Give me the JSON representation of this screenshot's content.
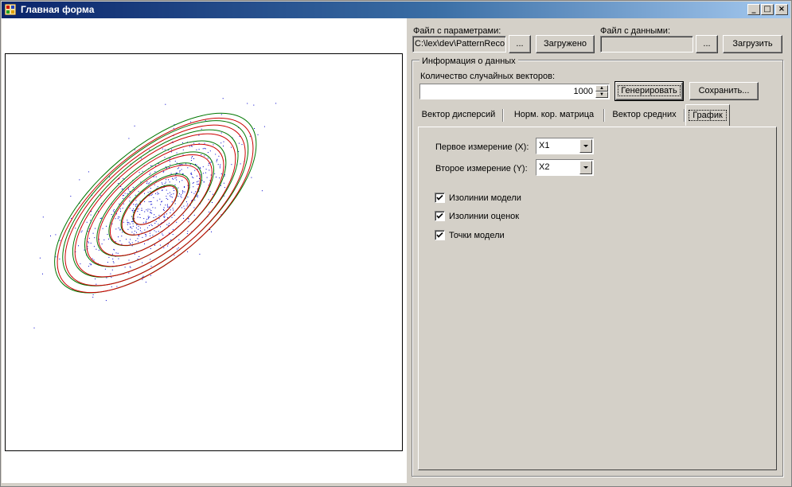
{
  "window": {
    "title": "Главная форма",
    "minimize_glyph": "_",
    "maximize_glyph": "□",
    "close_glyph": "×"
  },
  "params_file": {
    "label": "Файл с параметрами:",
    "path": "C:\\lex\\dev\\PatternReco",
    "browse_label": "...",
    "load_label": "Загружено"
  },
  "data_file": {
    "label": "Файл с данными:",
    "path": "",
    "browse_label": "...",
    "load_label": "Загрузить"
  },
  "data_info": {
    "group_title": "Информация о данных",
    "count_label": "Количество случайных векторов:",
    "count_value": "1000",
    "generate_label": "Генерировать",
    "save_label": "Сохранить..."
  },
  "tabs": [
    {
      "label": "Вектор дисперсий",
      "active": false
    },
    {
      "label": "Норм. кор. матрица",
      "active": false
    },
    {
      "label": "Вектор средних",
      "active": false
    },
    {
      "label": "График",
      "active": true
    }
  ],
  "graph_tab": {
    "x_dim_label": "Первое измерение (X):",
    "x_dim_value": "X1",
    "y_dim_label": "Второе измерение (Y):",
    "y_dim_value": "X2",
    "checkboxes": [
      {
        "label": "Изолинии модели",
        "checked": true
      },
      {
        "label": "Изолинии оценок",
        "checked": true
      },
      {
        "label": "Точки модели",
        "checked": true
      }
    ]
  },
  "plot": {
    "model_isoline_color": "#cc0000",
    "estimate_isoline_color": "#007700",
    "point_color": "#0000cc"
  }
}
